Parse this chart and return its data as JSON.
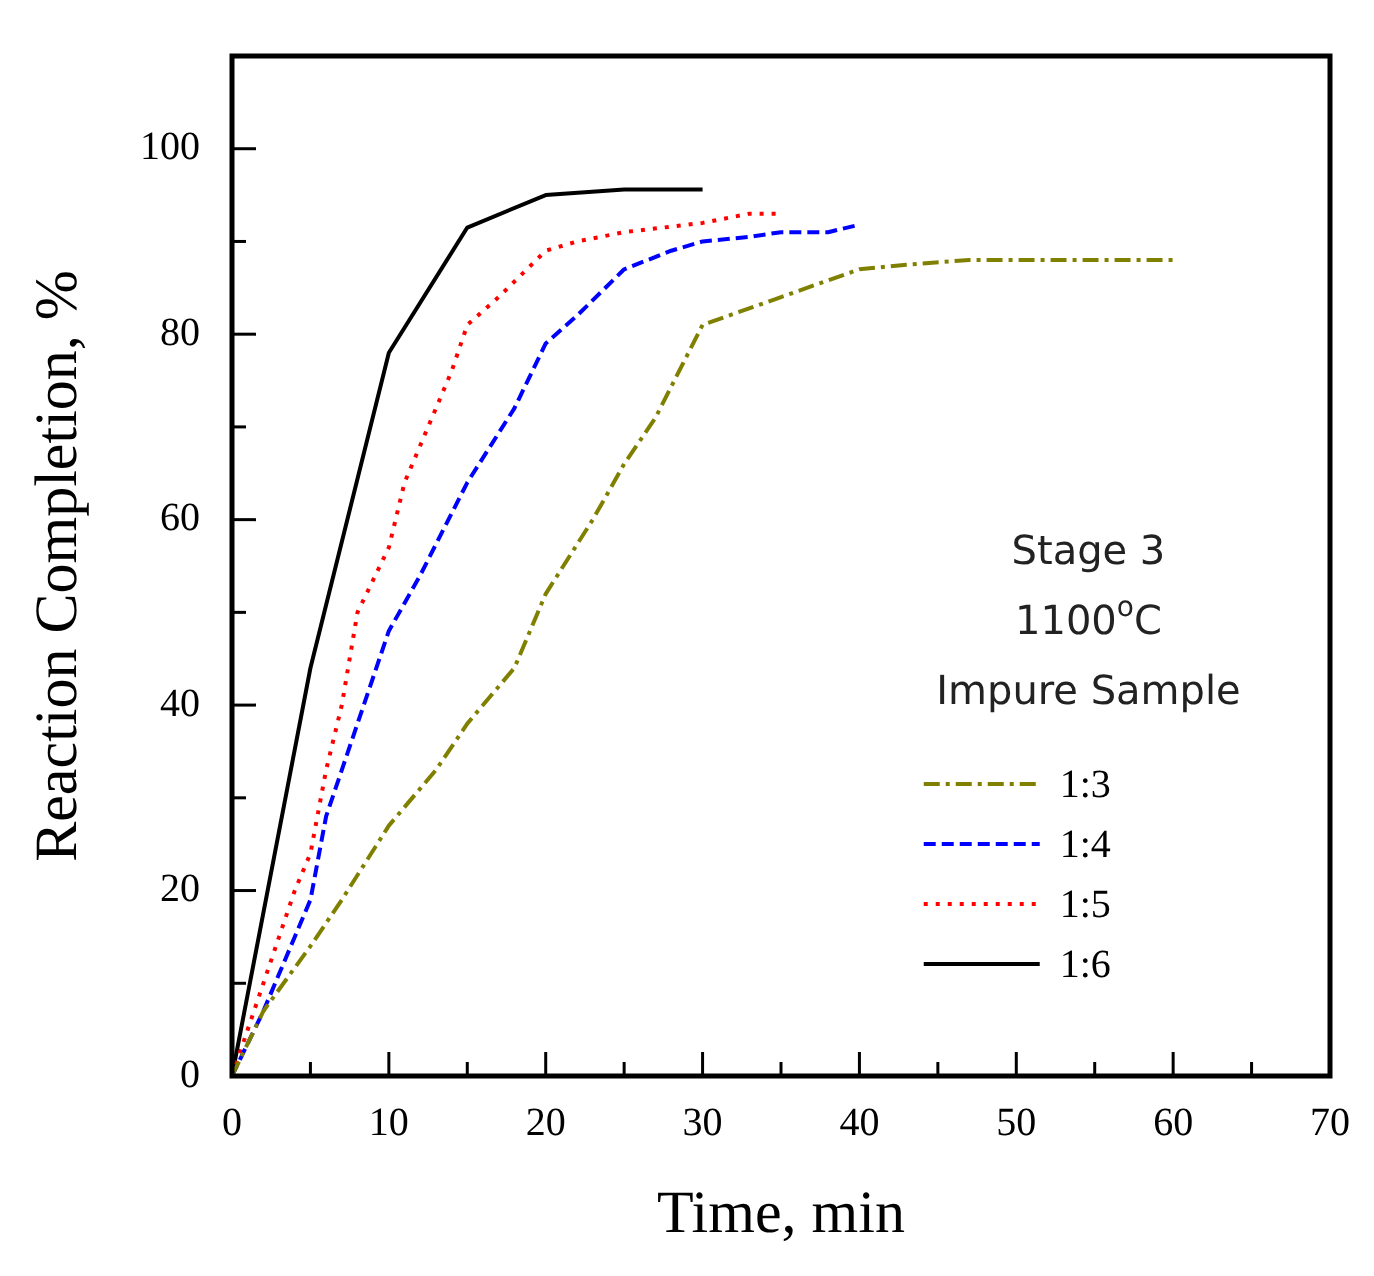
{
  "chart_data": {
    "type": "line",
    "xlabel": "Time, min",
    "ylabel": "Reaction Completion, %",
    "xlim": [
      0,
      70
    ],
    "xticks": [
      0,
      {
        "value": 5,
        "label": null
      },
      10,
      {
        "value": 15,
        "label": null
      },
      20,
      {
        "value": 25,
        "label": null
      },
      30,
      {
        "value": 35,
        "label": null
      },
      40,
      {
        "value": 45,
        "label": null
      },
      50,
      {
        "value": 55,
        "label": null
      },
      60,
      {
        "value": 65,
        "label": null
      },
      70
    ],
    "ylim": [
      0,
      110
    ],
    "yticks": [
      0,
      {
        "value": 10,
        "label": null
      },
      20,
      {
        "value": 30,
        "label": null
      },
      40,
      {
        "value": 50,
        "label": null
      },
      60,
      {
        "value": 70,
        "label": null
      },
      80,
      {
        "value": 90,
        "label": null
      },
      100
    ],
    "grid": false,
    "legend": "right",
    "marker": "none",
    "annotations": [
      "Stage 3",
      "1100$^{o}$C",
      "Impure Sample"
    ],
    "series": [
      {
        "name": "1:3",
        "color": "#808000",
        "line_style": "dashdot",
        "x": [
          0,
          2,
          5,
          7,
          10,
          13,
          15,
          18,
          20,
          23,
          25,
          27,
          30,
          35,
          40,
          43,
          47,
          50,
          60
        ],
        "values": [
          0,
          7,
          14,
          19,
          27,
          33,
          38,
          44,
          52,
          60,
          66,
          71,
          81,
          84,
          87,
          87.5,
          88,
          88,
          88
        ]
      },
      {
        "name": "1:4",
        "color": "#0000ff",
        "line_style": "dashed",
        "x": [
          0,
          2,
          4,
          5,
          6,
          8,
          10,
          12,
          15,
          18,
          20,
          22,
          25,
          28,
          30,
          33,
          35,
          38,
          40
        ],
        "values": [
          0,
          7,
          15,
          19,
          28,
          38,
          48,
          54,
          64,
          72,
          79,
          82,
          87,
          89,
          90,
          90.5,
          91,
          91,
          91.8
        ]
      },
      {
        "name": "1:5",
        "color": "#ff0000",
        "line_style": "dotted",
        "x": [
          0,
          2,
          4,
          5,
          6,
          7,
          8,
          10,
          11,
          12,
          14,
          15,
          17,
          20,
          22,
          25,
          30,
          33,
          35
        ],
        "values": [
          0,
          10,
          20,
          24,
          33,
          40,
          50,
          57,
          64,
          68,
          76,
          81,
          84,
          89,
          90,
          91,
          92,
          93,
          93
        ]
      },
      {
        "name": "1:6",
        "color": "#000000",
        "line_style": "solid",
        "x": [
          0,
          5,
          10,
          15,
          20,
          25,
          30
        ],
        "values": [
          0,
          44,
          78,
          91.5,
          95,
          95.6,
          95.6
        ]
      }
    ]
  }
}
